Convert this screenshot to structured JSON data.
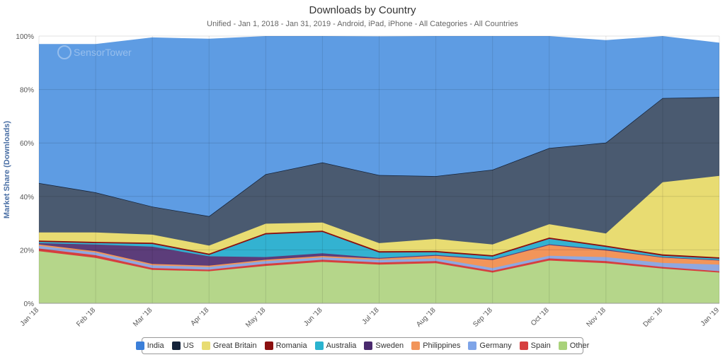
{
  "chart_data": {
    "type": "area",
    "stacked": true,
    "percent_scale": true,
    "title": "Downloads by Country",
    "subtitle": "Unified - Jan 1, 2018 - Jan 31, 2019 - Android, iPad, iPhone - All Categories - All Countries",
    "ylabel": "Market Share (Downloads)",
    "ylim": [
      0,
      100
    ],
    "yticks": [
      "0%",
      "20%",
      "40%",
      "60%",
      "80%",
      "100%"
    ],
    "grid": true,
    "legend_position": "bottom",
    "watermark": "SensorTower",
    "categories": [
      "Jan '18",
      "Feb '18",
      "Mar '18",
      "Apr '18",
      "May '18",
      "Jun '18",
      "Jul '18",
      "Aug '18",
      "Sep '18",
      "Oct '18",
      "Nov '18",
      "Dec '18",
      "Jan '19"
    ],
    "series": [
      {
        "name": "Other",
        "color": "#b5d68a",
        "values": [
          19.5,
          17.0,
          12.5,
          12.0,
          14.0,
          15.5,
          14.5,
          15.0,
          11.5,
          16.0,
          15.0,
          13.0,
          11.5
        ]
      },
      {
        "name": "Spain",
        "color": "#d63f3f",
        "values": [
          1.0,
          1.0,
          0.7,
          0.6,
          0.8,
          0.8,
          0.8,
          0.8,
          0.7,
          0.8,
          0.8,
          0.6,
          0.5
        ]
      },
      {
        "name": "Germany",
        "color": "#8fa8e0",
        "values": [
          1.0,
          1.0,
          1.0,
          1.0,
          1.0,
          0.9,
          0.9,
          1.0,
          1.0,
          1.0,
          1.5,
          1.5,
          2.5
        ]
      },
      {
        "name": "Philippines",
        "color": "#f2955a",
        "values": [
          0.5,
          0.5,
          0.5,
          0.5,
          0.5,
          0.5,
          0.5,
          1.0,
          3.0,
          4.0,
          2.5,
          2.0,
          1.5
        ]
      },
      {
        "name": "Sweden",
        "color": "#5c3d7a",
        "values": [
          0.5,
          2.5,
          6.5,
          3.5,
          1.0,
          1.0,
          0.3,
          0.3,
          0.3,
          0.3,
          0.3,
          0.2,
          0.2
        ]
      },
      {
        "name": "Australia",
        "color": "#33b2d1",
        "values": [
          0.5,
          0.5,
          1.0,
          0.5,
          8.5,
          8.0,
          2.0,
          1.0,
          1.0,
          2.0,
          1.0,
          0.5,
          0.5
        ]
      },
      {
        "name": "Romania",
        "color": "#8b1010",
        "values": [
          0.5,
          0.5,
          0.5,
          0.5,
          0.5,
          0.5,
          0.5,
          0.5,
          0.5,
          0.5,
          0.5,
          0.5,
          0.5
        ]
      },
      {
        "name": "Great Britain",
        "color": "#e8dc72",
        "values": [
          3.0,
          3.5,
          3.0,
          3.0,
          3.5,
          3.0,
          3.0,
          4.5,
          4.0,
          5.0,
          4.5,
          27.0,
          30.5
        ]
      },
      {
        "name": "US",
        "color": "#4a5a70",
        "values": [
          18.5,
          15.0,
          10.5,
          11.0,
          18.5,
          22.5,
          25.5,
          23.5,
          28.0,
          28.5,
          34.0,
          31.5,
          29.5
        ]
      },
      {
        "name": "India",
        "color": "#5e9ce3",
        "values": [
          52.0,
          55.5,
          63.3,
          66.4,
          51.7,
          47.3,
          51.9,
          52.4,
          50.0,
          41.9,
          38.4,
          23.2,
          20.3
        ]
      }
    ],
    "legend_order": [
      "India",
      "US",
      "Great Britain",
      "Romania",
      "Australia",
      "Sweden",
      "Philippines",
      "Germany",
      "Spain",
      "Other"
    ],
    "legend_colors": {
      "India": "#3b7fd9",
      "US": "#14233a",
      "Great Britain": "#e8dc72",
      "Romania": "#8b1010",
      "Australia": "#2bb3cf",
      "Sweden": "#4a2a6e",
      "Philippines": "#f2955a",
      "Germany": "#7ea4e8",
      "Spain": "#d63f3f",
      "Other": "#a9d27a"
    }
  }
}
